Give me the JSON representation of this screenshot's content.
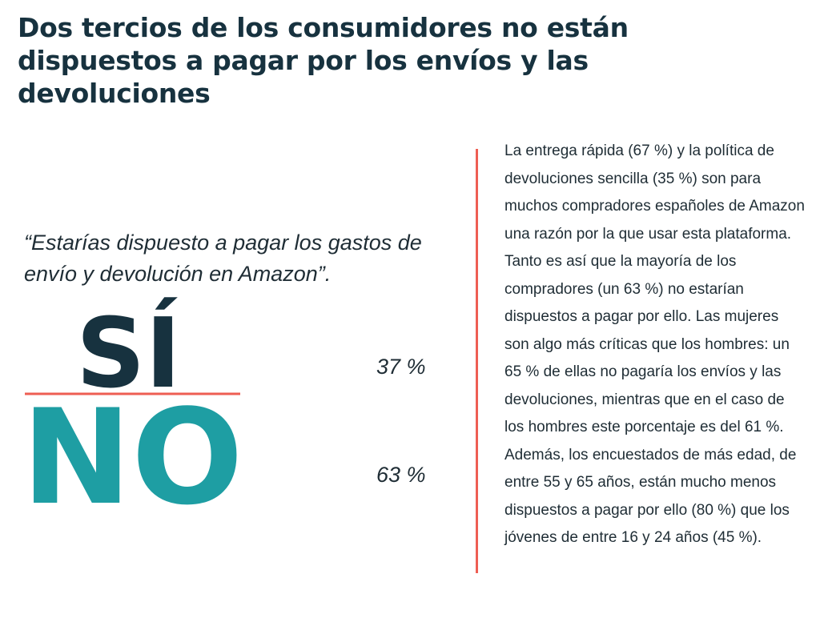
{
  "title": "Dos tercios de los consumidores no están dispuestos a pagar por los envíos y las devoluciones",
  "question": "“Estarías dispuesto a pagar los gastos de envío y devolución en Amazon”.",
  "body_text": "La entrega rápida (67 %) y la política de devoluciones sencilla (35 %) son para muchos compradores españoles de Amazon una razón por la que usar esta plataforma. Tanto es así que la mayoría de los compradores (un 63 %) no estarían dispuestos a pagar por ello. Las mujeres son algo más críticas que los hombres: un 65 % de ellas no pagaría los envíos y las devoluciones, mientras que en el caso de los hombres este porcentaje es del 61 %. Además, los encuestados de más edad, de entre 55 y 65 años, están mucho menos dispuestos a pagar por ello (80 %) que los jóvenes de entre 16 y 24 años (45 %).",
  "colors": {
    "title": "#17323f",
    "si": "#17323f",
    "no": "#1e9ea3",
    "accent_line": "#ee5e53"
  },
  "chart_data": {
    "type": "table",
    "title": "Dos tercios de los consumidores no están dispuestos a pagar por los envíos y las devoluciones",
    "categories": [
      "SÍ",
      "NO"
    ],
    "values": [
      37,
      63
    ],
    "value_labels": [
      "37 %",
      "63 %"
    ],
    "unit": "%"
  }
}
